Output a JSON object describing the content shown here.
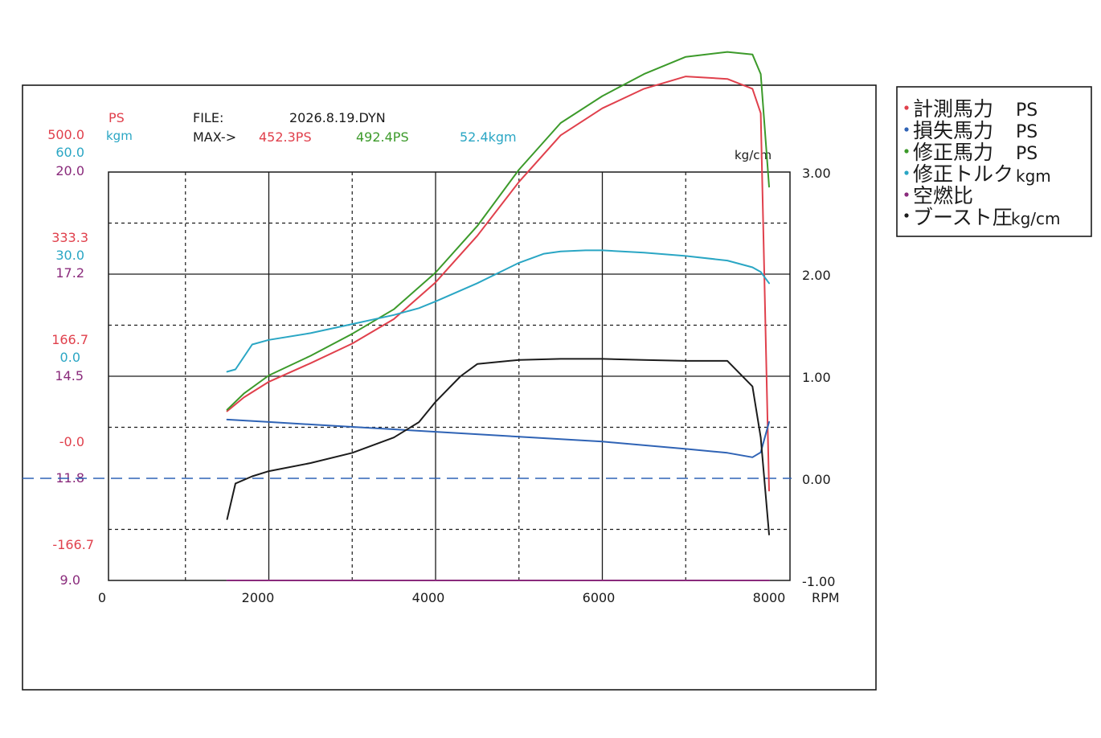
{
  "header": {
    "file_label": "FILE:",
    "file_name": "2026.8.19.DYN",
    "max_label": "MAX->",
    "max_measured": "452.3PS",
    "max_corrected": "492.4PS",
    "max_torque": "52.4kgm",
    "unit_ps": "PS",
    "unit_kgm": "kgm",
    "unit_boost": "kg/cm"
  },
  "colors": {
    "measured": "#e0404c",
    "loss": "#2f63b5",
    "corrected": "#3c9a2a",
    "torque": "#2aa6c4",
    "afr": "#8a2b7c",
    "boost": "#1c1c1c",
    "zero_line": "#2f63b5"
  },
  "left_axis_labels": [
    {
      "ps": "500.0",
      "kgm": "60.0",
      "afr": "20.0"
    },
    {
      "ps": "333.3",
      "kgm": "30.0",
      "afr": "17.2"
    },
    {
      "ps": "166.7",
      "kgm": "0.0",
      "afr": "14.5"
    },
    {
      "ps": "-0.0",
      "kgm": "",
      "afr": ""
    },
    {
      "ps": "",
      "kgm": "",
      "afr": "11.8"
    },
    {
      "ps": "-166.7",
      "kgm": "",
      "afr": ""
    },
    {
      "ps": "",
      "kgm": "",
      "afr": "9.0"
    }
  ],
  "legend": [
    {
      "name": "計測馬力",
      "unit": "PS",
      "color": "#e0404c"
    },
    {
      "name": "損失馬力",
      "unit": "PS",
      "color": "#2f63b5"
    },
    {
      "name": "修正馬力",
      "unit": "PS",
      "color": "#3c9a2a"
    },
    {
      "name": "修正トルク",
      "unit": "kgm",
      "color": "#2aa6c4"
    },
    {
      "name": "空燃比",
      "unit": "",
      "color": "#8a2b7c"
    },
    {
      "name": "ブースト圧",
      "unit": "kg/cm",
      "color": "#1c1c1c"
    }
  ],
  "chart_data": {
    "type": "line",
    "xlabel": "RPM",
    "xlim": [
      0,
      8000
    ],
    "x_ticks": [
      "0",
      "2000",
      "4000",
      "6000",
      "8000"
    ],
    "right_axis_label": "kg/cm",
    "right_ticks": [
      "3.00",
      "2.00",
      "1.00",
      "0.00",
      "-1.00"
    ],
    "right_ylim": [
      -1,
      3
    ],
    "grid": true,
    "legend_position": "right outside",
    "series": [
      {
        "name": "計測馬力",
        "unit": "PS",
        "color_key": "measured",
        "x": [
          1500,
          1700,
          2000,
          2500,
          3000,
          3500,
          4000,
          4500,
          5000,
          5500,
          6000,
          6500,
          7000,
          7500,
          7800,
          7900,
          8000
        ],
        "y": [
          12,
          40,
          72,
          110,
          150,
          200,
          275,
          370,
          480,
          575,
          630,
          670,
          695,
          690,
          670,
          620,
          -150
        ]
      },
      {
        "name": "損失馬力",
        "unit": "PS",
        "color_key": "loss",
        "x": [
          1500,
          2000,
          3000,
          4000,
          5000,
          6000,
          7000,
          7500,
          7800,
          7900,
          8000
        ],
        "y": [
          -5,
          -10,
          -20,
          -30,
          -40,
          -50,
          -65,
          -73,
          -82,
          -72,
          -10
        ]
      },
      {
        "name": "修正馬力",
        "unit": "PS",
        "color_key": "corrected",
        "x": [
          1500,
          1700,
          2000,
          2500,
          3000,
          3500,
          4000,
          4500,
          5000,
          5500,
          6000,
          6500,
          7000,
          7500,
          7800,
          7900,
          8000
        ],
        "y": [
          15,
          48,
          85,
          125,
          170,
          220,
          295,
          390,
          505,
          600,
          655,
          700,
          735,
          745,
          740,
          700,
          470
        ]
      },
      {
        "name": "修正トルク",
        "unit": "kgm",
        "color_key": "torque",
        "x": [
          1500,
          1600,
          1800,
          2000,
          2500,
          3000,
          3500,
          3800,
          4000,
          4500,
          5000,
          5300,
          5500,
          5800,
          6000,
          6500,
          7000,
          7500,
          7800,
          7900,
          8000
        ],
        "y": [
          -28,
          -27,
          -16,
          -14,
          -11,
          -7,
          -3,
          0,
          3,
          11,
          20,
          24,
          25,
          25.5,
          25.5,
          24.5,
          23,
          21,
          18,
          16,
          11
        ]
      },
      {
        "name": "空燃比",
        "unit": "",
        "color_key": "afr",
        "x": [
          1500,
          8000
        ],
        "y": [
          9.0,
          9.0
        ]
      },
      {
        "name": "ブースト圧",
        "unit": "kg/cm",
        "color_key": "boost",
        "x": [
          1500,
          1600,
          1800,
          2000,
          2500,
          3000,
          3500,
          3800,
          4000,
          4300,
          4500,
          5000,
          5500,
          6000,
          6500,
          7000,
          7500,
          7800,
          7900,
          8000
        ],
        "y": [
          -0.4,
          -0.05,
          0.02,
          0.07,
          0.15,
          0.25,
          0.4,
          0.55,
          0.75,
          1.0,
          1.12,
          1.16,
          1.17,
          1.17,
          1.16,
          1.15,
          1.15,
          0.9,
          0.4,
          -0.55
        ]
      }
    ]
  }
}
